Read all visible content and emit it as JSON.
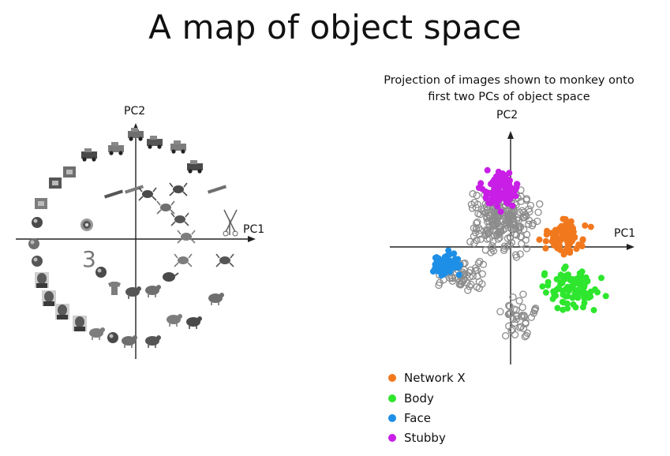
{
  "title": "A map of object space",
  "left_diagram": {
    "x_axis_label": "PC1",
    "y_axis_label": "PC2",
    "digit_glyph": "3",
    "icons": [
      "truck",
      "tractor",
      "forklift",
      "tank",
      "rifle",
      "scissors",
      "truck",
      "bus",
      "camera",
      "phone",
      "radio",
      "clock",
      "coin",
      "ball",
      "face",
      "face",
      "face",
      "face",
      "pig",
      "apple",
      "elephant",
      "rabbit",
      "chicken",
      "rooster",
      "bird",
      "scorpion",
      "octopus",
      "teapot",
      "fish",
      "cow",
      "shirt",
      "ball",
      "dart-board",
      "lipstick",
      "gun",
      "dragon",
      "frogs",
      "plant",
      "lobster",
      "insect"
    ]
  },
  "right_chart": {
    "title_line1": "Projection of images shown to monkey onto",
    "title_line2": "first two PCs of object space",
    "x_axis_label": "PC1",
    "y_axis_label": "PC2",
    "legend": [
      {
        "label": "Network X",
        "color": "#f2781e"
      },
      {
        "label": "Body",
        "color": "#2ee62e"
      },
      {
        "label": "Face",
        "color": "#1e8fe6"
      },
      {
        "label": "Stubby",
        "color": "#c81ee6"
      }
    ],
    "other_marker_color": "#8c8c8c"
  }
}
